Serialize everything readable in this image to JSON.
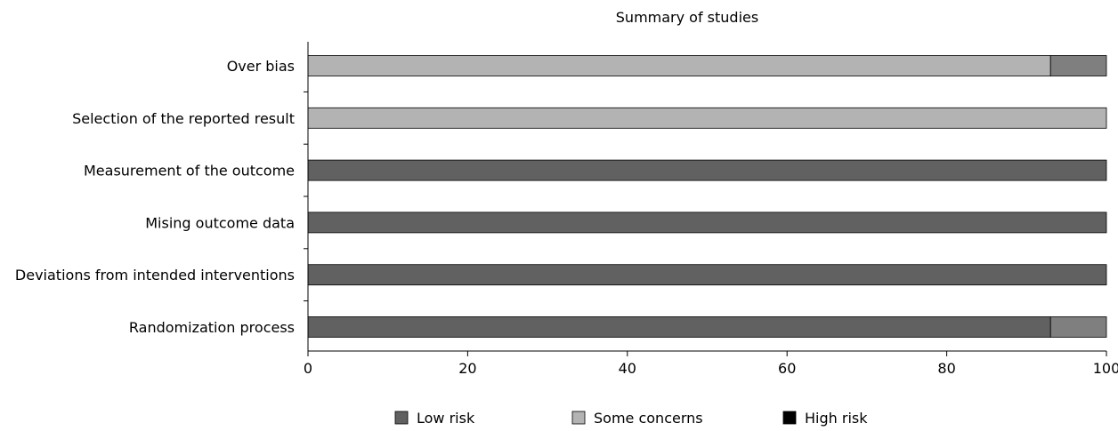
{
  "chart_data": {
    "type": "bar",
    "orientation": "horizontal",
    "stacked": true,
    "title": "Summary of studies",
    "categories": [
      "Over bias",
      "Selection of the reported result",
      "Measurement of the outcome",
      "Mising outcome data",
      "Deviations from intended interventions",
      "Randomization process"
    ],
    "xlim": [
      0,
      100
    ],
    "xticks": [
      "0",
      "20",
      "40",
      "60",
      "80",
      "100"
    ],
    "grid": false,
    "legend_position": "bottom",
    "legend": [
      {
        "label": "Low risk",
        "color": "#616161"
      },
      {
        "label": "Some concerns",
        "color": "#b3b3b3"
      },
      {
        "label": "High risk",
        "color": "#000000"
      }
    ],
    "segments": [
      [
        {
          "value": 93,
          "color": "#b3b3b3"
        },
        {
          "value": 7,
          "color": "#7f7f7f"
        }
      ],
      [
        {
          "value": 100,
          "color": "#b3b3b3"
        }
      ],
      [
        {
          "value": 100,
          "color": "#616161"
        }
      ],
      [
        {
          "value": 100,
          "color": "#616161"
        }
      ],
      [
        {
          "value": 100,
          "color": "#616161"
        }
      ],
      [
        {
          "value": 93,
          "color": "#616161"
        },
        {
          "value": 7,
          "color": "#7f7f7f"
        }
      ]
    ]
  }
}
